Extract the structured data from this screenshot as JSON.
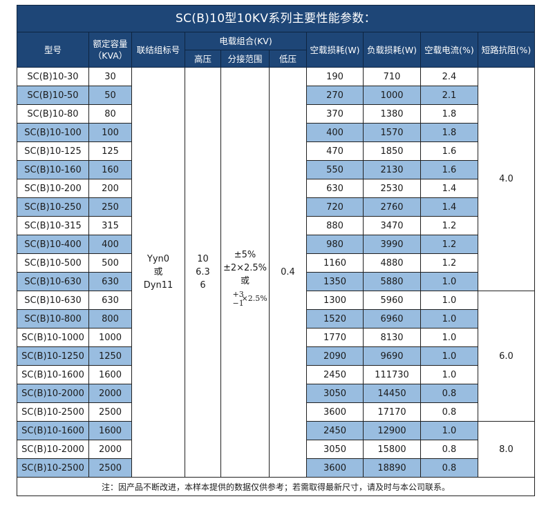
{
  "title": "SC(B)10型10KV系列主要性能参数：",
  "headers": {
    "model": "型号",
    "capacity_line1": "额定容量",
    "capacity_line2": "（KVA）",
    "connection": "联结组标号",
    "voltage_group": "电载组合(KV)",
    "high_voltage": "高压",
    "tap_range": "分接范围",
    "low_voltage": "低压",
    "no_load_loss": "空载损耗(W)",
    "load_loss": "负载损耗(W)",
    "no_load_current": "空载电流(%)",
    "short_circuit_impedance": "短路抗阻(%)"
  },
  "merged": {
    "connection_line1": "Yyn0",
    "connection_line2": "或",
    "connection_line3": "Dyn11",
    "hv_line1": "10",
    "hv_line2": "6.3",
    "hv_line3": "6",
    "tap_line1": "±5%",
    "tap_line2": "±2×2.5%",
    "tap_line3": "或",
    "tap_plus": "+3",
    "tap_minus": "−1",
    "tap_times": "×2.5%",
    "lv": "0.4",
    "impedance_group1": "4.0",
    "impedance_group2": "6.0",
    "impedance_group3": "8.0"
  },
  "rows": [
    {
      "model": "SC(B)10-30",
      "capacity": "30",
      "no_load_loss": "190",
      "load_loss": "710",
      "no_load_current": "2.4"
    },
    {
      "model": "SC(B)10-50",
      "capacity": "50",
      "no_load_loss": "270",
      "load_loss": "1000",
      "no_load_current": "2.1"
    },
    {
      "model": "SC(B)10-80",
      "capacity": "80",
      "no_load_loss": "370",
      "load_loss": "1380",
      "no_load_current": "1.8"
    },
    {
      "model": "SC(B)10-100",
      "capacity": "100",
      "no_load_loss": "400",
      "load_loss": "1570",
      "no_load_current": "1.8"
    },
    {
      "model": "SC(B)10-125",
      "capacity": "125",
      "no_load_loss": "470",
      "load_loss": "1850",
      "no_load_current": "1.6"
    },
    {
      "model": "SC(B)10-160",
      "capacity": "160",
      "no_load_loss": "550",
      "load_loss": "2130",
      "no_load_current": "1.6"
    },
    {
      "model": "SC(B)10-200",
      "capacity": "200",
      "no_load_loss": "630",
      "load_loss": "2530",
      "no_load_current": "1.4"
    },
    {
      "model": "SC(B)10-250",
      "capacity": "250",
      "no_load_loss": "720",
      "load_loss": "2760",
      "no_load_current": "1.4"
    },
    {
      "model": "SC(B)10-315",
      "capacity": "315",
      "no_load_loss": "880",
      "load_loss": "3470",
      "no_load_current": "1.2"
    },
    {
      "model": "SC(B)10-400",
      "capacity": "400",
      "no_load_loss": "980",
      "load_loss": "3990",
      "no_load_current": "1.2"
    },
    {
      "model": "SC(B)10-500",
      "capacity": "500",
      "no_load_loss": "1160",
      "load_loss": "4880",
      "no_load_current": "1.2"
    },
    {
      "model": "SC(B)10-630",
      "capacity": "630",
      "no_load_loss": "1350",
      "load_loss": "5880",
      "no_load_current": "1.0"
    },
    {
      "model": "SC(B)10-630",
      "capacity": "630",
      "no_load_loss": "1300",
      "load_loss": "5960",
      "no_load_current": "1.0"
    },
    {
      "model": "SC(B)10-800",
      "capacity": "800",
      "no_load_loss": "1520",
      "load_loss": "6960",
      "no_load_current": "1.0"
    },
    {
      "model": "SC(B)10-1000",
      "capacity": "1000",
      "no_load_loss": "1770",
      "load_loss": "8130",
      "no_load_current": "1.0"
    },
    {
      "model": "SC(B)10-1250",
      "capacity": "1250",
      "no_load_loss": "2090",
      "load_loss": "9690",
      "no_load_current": "1.0"
    },
    {
      "model": "SC(B)10-1600",
      "capacity": "1600",
      "no_load_loss": "2450",
      "load_loss": "111730",
      "no_load_current": "1.0"
    },
    {
      "model": "SC(B)10-2000",
      "capacity": "2000",
      "no_load_loss": "3050",
      "load_loss": "14450",
      "no_load_current": "0.8"
    },
    {
      "model": "SC(B)10-2500",
      "capacity": "2500",
      "no_load_loss": "3600",
      "load_loss": "17170",
      "no_load_current": "0.8"
    },
    {
      "model": "SC(B)10-1600",
      "capacity": "1600",
      "no_load_loss": "2450",
      "load_loss": "12900",
      "no_load_current": "1.0"
    },
    {
      "model": "SC(B)10-2000",
      "capacity": "2000",
      "no_load_loss": "3050",
      "load_loss": "15800",
      "no_load_current": "0.8"
    },
    {
      "model": "SC(B)10-2500",
      "capacity": "2500",
      "no_load_loss": "3600",
      "load_loss": "18890",
      "no_load_current": "0.8"
    }
  ],
  "note": "注：因产品不断改进，本样本提供的数据仅供参考；若需取得最新尺寸，请及时与本公司联系。",
  "colors": {
    "header_bg": "#1e4677",
    "header_text": "#ffffff",
    "alt_row_bg": "#99bde0",
    "row_bg": "#ffffff",
    "border": "#1f1f1f"
  }
}
